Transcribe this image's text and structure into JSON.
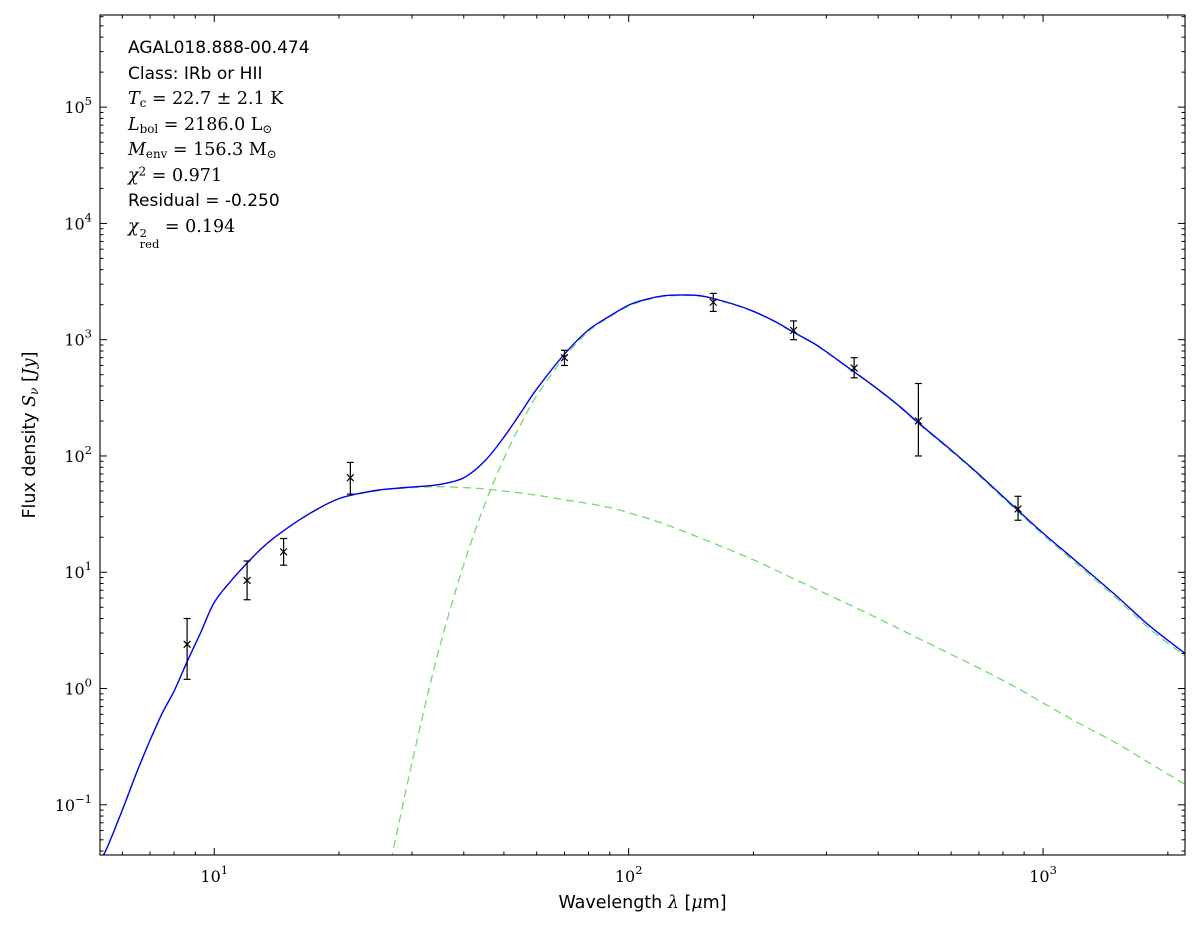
{
  "figure": {
    "bg": "#ffffff",
    "frame_color": "#000000"
  },
  "annotation": {
    "source": "AGAL018.888-00.474",
    "class_line": "Class: IRb or HII",
    "tc": {
      "sym": "T",
      "sub": "c",
      "eq": " = 22.7 ± 2.1 ",
      "unit": "K"
    },
    "lbol": {
      "sym": "L",
      "sub": "bol",
      "eq": " = 2186.0 ",
      "unit": "L",
      "unit_sub": "⊙"
    },
    "menv": {
      "sym": "M",
      "sub": "env",
      "eq": " = 156.3 ",
      "unit": "M",
      "unit_sub": "⊙"
    },
    "chi2": {
      "sym": "χ",
      "sup": "2",
      "eq": " = 0.971"
    },
    "residual": "Residual = -0.250",
    "chi2red": {
      "sym": "χ",
      "sup": "2",
      "sub": "red",
      "eq": " = 0.194"
    }
  },
  "axes": {
    "xlabel": {
      "prefix": "Wavelength ",
      "sym": "λ",
      "open": " [",
      "mu": "μ",
      "close": "m]"
    },
    "ylabel": {
      "prefix": "Flux density ",
      "sym": "S",
      "sub": "ν",
      "open": " [",
      "unit": "Jy",
      "close": "]"
    }
  },
  "chart_data": {
    "type": "line",
    "title": "",
    "xlabel": "Wavelength λ [μm]",
    "ylabel": "Flux density S_ν [Jy]",
    "grid": false,
    "legend": false,
    "x_axis": {
      "scale": "log",
      "min": 5.3,
      "max": 2200,
      "major_tick_exponents": [
        1,
        2,
        3
      ]
    },
    "y_axis": {
      "scale": "log",
      "min": 0.037,
      "max": 620000,
      "major_tick_exponents": [
        -1,
        0,
        1,
        2,
        3,
        4,
        5
      ]
    },
    "series": [
      {
        "name": "warm-component",
        "style": "dashed",
        "color": "#70db70",
        "width": 1.3,
        "points": [
          [
            5.3,
            0.033
          ],
          [
            5.5,
            0.042
          ],
          [
            6,
            0.09
          ],
          [
            6.5,
            0.19
          ],
          [
            7,
            0.36
          ],
          [
            7.5,
            0.62
          ],
          [
            8,
            0.95
          ],
          [
            8.6,
            1.7
          ],
          [
            9.3,
            3.1
          ],
          [
            10,
            5.5
          ],
          [
            11,
            8.5
          ],
          [
            12,
            12
          ],
          [
            13,
            16
          ],
          [
            14,
            20
          ],
          [
            16,
            28
          ],
          [
            18,
            36
          ],
          [
            20,
            43
          ],
          [
            22,
            46.8
          ],
          [
            25,
            50.5
          ],
          [
            28,
            52.5
          ],
          [
            31,
            53.8
          ],
          [
            35,
            54.4
          ],
          [
            40,
            53.5
          ],
          [
            45,
            52
          ],
          [
            50,
            50
          ],
          [
            55,
            48
          ],
          [
            60,
            46
          ],
          [
            70,
            42
          ],
          [
            80,
            39
          ],
          [
            90,
            36
          ],
          [
            100,
            32.5
          ],
          [
            120,
            26.5
          ],
          [
            150,
            19.5
          ],
          [
            200,
            12.8
          ],
          [
            250,
            8.8
          ],
          [
            300,
            6.5
          ],
          [
            400,
            4.0
          ],
          [
            500,
            2.7
          ],
          [
            700,
            1.5
          ],
          [
            870,
            1.0
          ],
          [
            1000,
            0.75
          ],
          [
            1200,
            0.52
          ],
          [
            1500,
            0.34
          ],
          [
            1800,
            0.23
          ],
          [
            2200,
            0.15
          ]
        ]
      },
      {
        "name": "cold-greybody-component",
        "style": "dashed",
        "color": "#70db70",
        "width": 1.3,
        "points": [
          [
            26,
            0.02
          ],
          [
            27,
            0.04
          ],
          [
            28,
            0.074
          ],
          [
            30,
            0.23
          ],
          [
            33,
            1.0
          ],
          [
            36,
            3.3
          ],
          [
            40,
            11.7
          ],
          [
            45,
            39
          ],
          [
            50,
            95
          ],
          [
            55,
            190
          ],
          [
            60,
            330
          ],
          [
            70,
            710
          ],
          [
            80,
            1175
          ],
          [
            90,
            1570
          ],
          [
            100,
            1950
          ],
          [
            110,
            2190
          ],
          [
            120,
            2345
          ],
          [
            130,
            2395
          ],
          [
            140,
            2400
          ],
          [
            150,
            2360
          ],
          [
            160,
            2240
          ],
          [
            180,
            1990
          ],
          [
            200,
            1740
          ],
          [
            225,
            1430
          ],
          [
            250,
            1150
          ],
          [
            280,
            920
          ],
          [
            300,
            780
          ],
          [
            350,
            525
          ],
          [
            400,
            370
          ],
          [
            450,
            264
          ],
          [
            500,
            190
          ],
          [
            600,
            110
          ],
          [
            700,
            68
          ],
          [
            870,
            33
          ],
          [
            1000,
            21
          ],
          [
            1200,
            12
          ],
          [
            1500,
            6.0
          ],
          [
            1800,
            3.3
          ],
          [
            2200,
            1.9
          ]
        ]
      },
      {
        "name": "total-model",
        "style": "solid",
        "color": "#0000f0",
        "width": 1.4,
        "points": [
          [
            5.3,
            0.033
          ],
          [
            5.5,
            0.042
          ],
          [
            6,
            0.09
          ],
          [
            6.5,
            0.19
          ],
          [
            7,
            0.36
          ],
          [
            7.5,
            0.62
          ],
          [
            8,
            0.95
          ],
          [
            8.6,
            1.7
          ],
          [
            9.3,
            3.1
          ],
          [
            10,
            5.5
          ],
          [
            11,
            8.5
          ],
          [
            12,
            12
          ],
          [
            13,
            16
          ],
          [
            14,
            20
          ],
          [
            16,
            28
          ],
          [
            18,
            36
          ],
          [
            20,
            43
          ],
          [
            22,
            47
          ],
          [
            25,
            51
          ],
          [
            28,
            53
          ],
          [
            31,
            54.5
          ],
          [
            35,
            57
          ],
          [
            40,
            65
          ],
          [
            45,
            91
          ],
          [
            50,
            145
          ],
          [
            55,
            238
          ],
          [
            60,
            376
          ],
          [
            70,
            752
          ],
          [
            80,
            1214
          ],
          [
            90,
            1596
          ],
          [
            100,
            1983
          ],
          [
            110,
            2220
          ],
          [
            120,
            2372
          ],
          [
            130,
            2420
          ],
          [
            140,
            2425
          ],
          [
            150,
            2380
          ],
          [
            160,
            2260
          ],
          [
            180,
            2007
          ],
          [
            200,
            1753
          ],
          [
            225,
            1440
          ],
          [
            250,
            1159
          ],
          [
            280,
            928
          ],
          [
            300,
            787
          ],
          [
            350,
            529
          ],
          [
            400,
            374
          ],
          [
            450,
            268
          ],
          [
            500,
            193
          ],
          [
            600,
            112
          ],
          [
            700,
            69.5
          ],
          [
            870,
            34
          ],
          [
            1000,
            21.7
          ],
          [
            1200,
            12.5
          ],
          [
            1500,
            6.3
          ],
          [
            1800,
            3.5
          ],
          [
            2200,
            2.0
          ]
        ]
      }
    ],
    "data_points": {
      "marker": "x",
      "color": "#000000",
      "points": [
        {
          "wavelength_um": 8.6,
          "flux_jy": 2.4,
          "err_lo": 1.2,
          "err_hi": 4.0
        },
        {
          "wavelength_um": 12,
          "flux_jy": 8.5,
          "err_lo": 5.8,
          "err_hi": 12.5
        },
        {
          "wavelength_um": 14.7,
          "flux_jy": 15,
          "err_lo": 11.5,
          "err_hi": 19.5
        },
        {
          "wavelength_um": 21.3,
          "flux_jy": 65,
          "err_lo": 47,
          "err_hi": 88
        },
        {
          "wavelength_um": 70,
          "flux_jy": 700,
          "err_lo": 600,
          "err_hi": 810
        },
        {
          "wavelength_um": 160,
          "flux_jy": 2100,
          "err_lo": 1750,
          "err_hi": 2500
        },
        {
          "wavelength_um": 250,
          "flux_jy": 1200,
          "err_lo": 1000,
          "err_hi": 1450
        },
        {
          "wavelength_um": 350,
          "flux_jy": 570,
          "err_lo": 470,
          "err_hi": 700
        },
        {
          "wavelength_um": 500,
          "flux_jy": 200,
          "err_lo": 100,
          "err_hi": 420
        },
        {
          "wavelength_um": 870,
          "flux_jy": 35,
          "err_lo": 28,
          "err_hi": 45
        }
      ]
    }
  }
}
